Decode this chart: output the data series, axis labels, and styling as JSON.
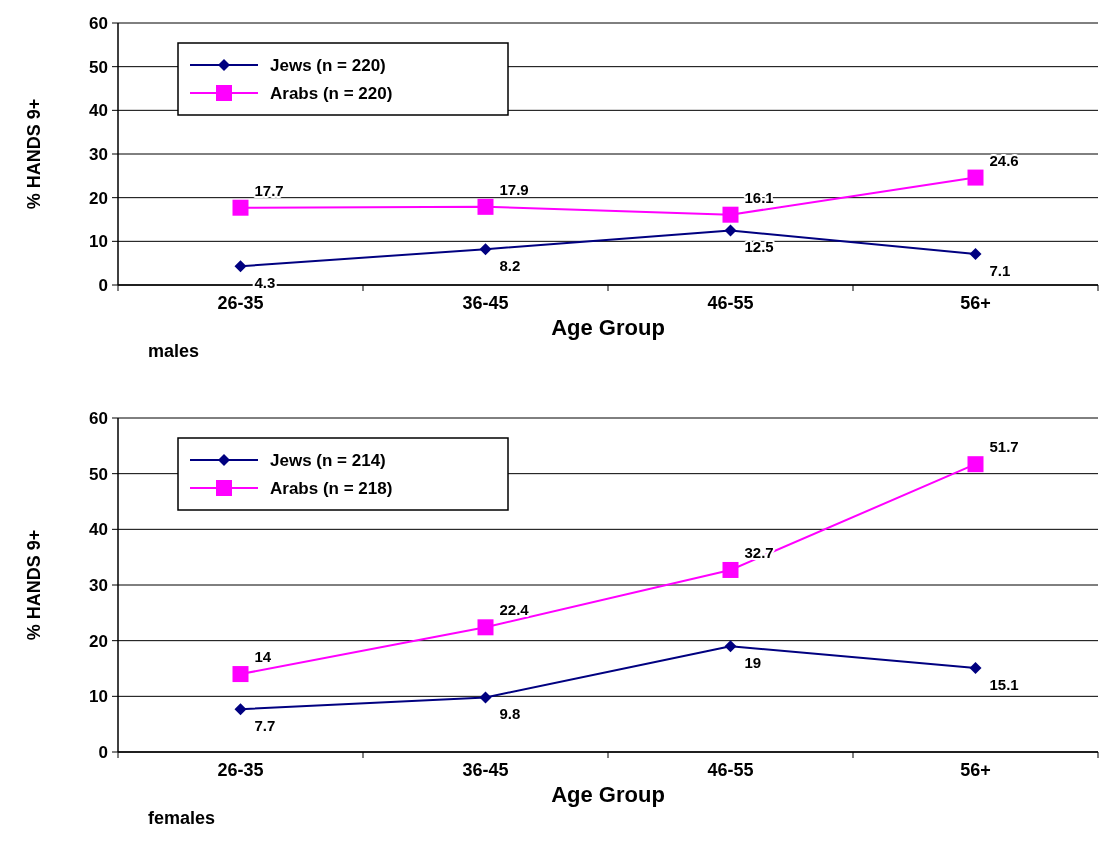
{
  "chart_data": [
    {
      "type": "line",
      "categories": [
        "26-35",
        "36-45",
        "46-55",
        "56+"
      ],
      "xlabel": "Age Group",
      "ylabel": "% HANDS 9+",
      "ylim": [
        0,
        60
      ],
      "yticks": [
        0,
        10,
        20,
        30,
        40,
        50,
        60
      ],
      "grid": "y",
      "legend": "top left",
      "data_labels": true,
      "annotations": [
        "males"
      ],
      "series": [
        {
          "name": "Jews (n = 220)",
          "color": "#000080",
          "marker": "diamond",
          "values": [
            4.3,
            8.2,
            12.5,
            7.1
          ]
        },
        {
          "name": "Arabs (n = 220)",
          "color": "#ff00ff",
          "marker": "square",
          "values": [
            17.7,
            17.9,
            16.1,
            24.6
          ]
        }
      ]
    },
    {
      "type": "line",
      "categories": [
        "26-35",
        "36-45",
        "46-55",
        "56+"
      ],
      "xlabel": "Age Group",
      "ylabel": "% HANDS 9+",
      "ylim": [
        0,
        60
      ],
      "yticks": [
        0,
        10,
        20,
        30,
        40,
        50,
        60
      ],
      "grid": "y",
      "legend": "top left",
      "data_labels": true,
      "annotations": [
        "females"
      ],
      "series": [
        {
          "name": "Jews (n = 214)",
          "color": "#000080",
          "marker": "diamond",
          "values": [
            7.7,
            9.8,
            19,
            15.1
          ]
        },
        {
          "name": "Arabs (n = 218)",
          "color": "#ff00ff",
          "marker": "square",
          "values": [
            14,
            22.4,
            32.7,
            51.7
          ]
        }
      ]
    }
  ]
}
